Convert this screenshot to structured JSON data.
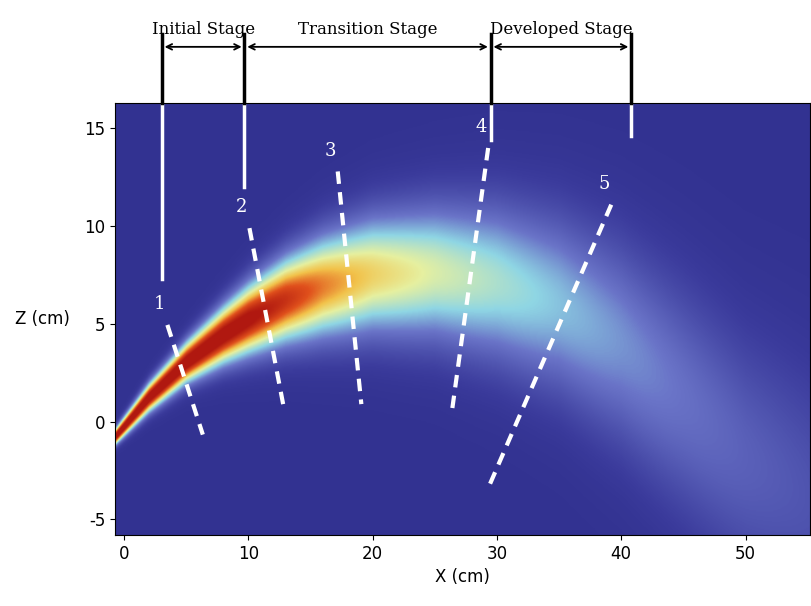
{
  "chart_data": {
    "type": "field",
    "xlabel": "X (cm)",
    "ylabel": "Z (cm)",
    "xlim": [
      -0.7,
      55.2
    ],
    "ylim": [
      -5.8,
      16.3
    ],
    "xticks": [
      0,
      10,
      20,
      30,
      40,
      50
    ],
    "yticks": [
      -5,
      0,
      5,
      10,
      15
    ],
    "background": 0.08,
    "centerline": {
      "x": [
        -0.7,
        2,
        5,
        8,
        10,
        13,
        16,
        20,
        25,
        30,
        35,
        40,
        45,
        50,
        55.2
      ],
      "z": [
        -0.8,
        1.2,
        3.0,
        4.4,
        5.2,
        6.2,
        6.9,
        7.5,
        7.6,
        7.1,
        6.0,
        4.0,
        1.2,
        -1.8,
        -4.0
      ],
      "width": [
        0.4,
        0.7,
        1.0,
        1.4,
        1.7,
        2.1,
        2.5,
        2.9,
        3.3,
        3.8,
        4.3,
        4.9,
        5.5,
        6.0,
        6.5
      ],
      "intensity": [
        1.0,
        1.0,
        1.0,
        0.98,
        0.95,
        0.85,
        0.72,
        0.6,
        0.5,
        0.42,
        0.34,
        0.27,
        0.21,
        0.16,
        0.12
      ]
    },
    "sections": [
      {
        "label": "1",
        "x": [
          3.5,
          6.35
        ],
        "z": [
          4.95,
          -0.66
        ]
      },
      {
        "label": "2",
        "x": [
          10.1,
          12.9
        ],
        "z": [
          9.9,
          0.6
        ]
      },
      {
        "label": "3",
        "x": [
          17.2,
          19.1
        ],
        "z": [
          12.8,
          0.9
        ]
      },
      {
        "label": "4",
        "x": [
          29.3,
          26.4
        ],
        "z": [
          14.0,
          0.6
        ]
      },
      {
        "label": "5",
        "x": [
          39.2,
          29.3
        ],
        "z": [
          11.1,
          -3.4
        ]
      }
    ],
    "stages": {
      "boundaries": [
        {
          "x": 3.05,
          "z_bottom": 7.3
        },
        {
          "x": 9.7,
          "z_bottom": 12.0
        },
        {
          "x": 29.5,
          "z_bottom": 14.4
        },
        {
          "x": 40.8,
          "z_bottom": 14.6
        }
      ],
      "labels": [
        "Initial Stage",
        "Transition Stage",
        "Developed Stage"
      ]
    }
  }
}
